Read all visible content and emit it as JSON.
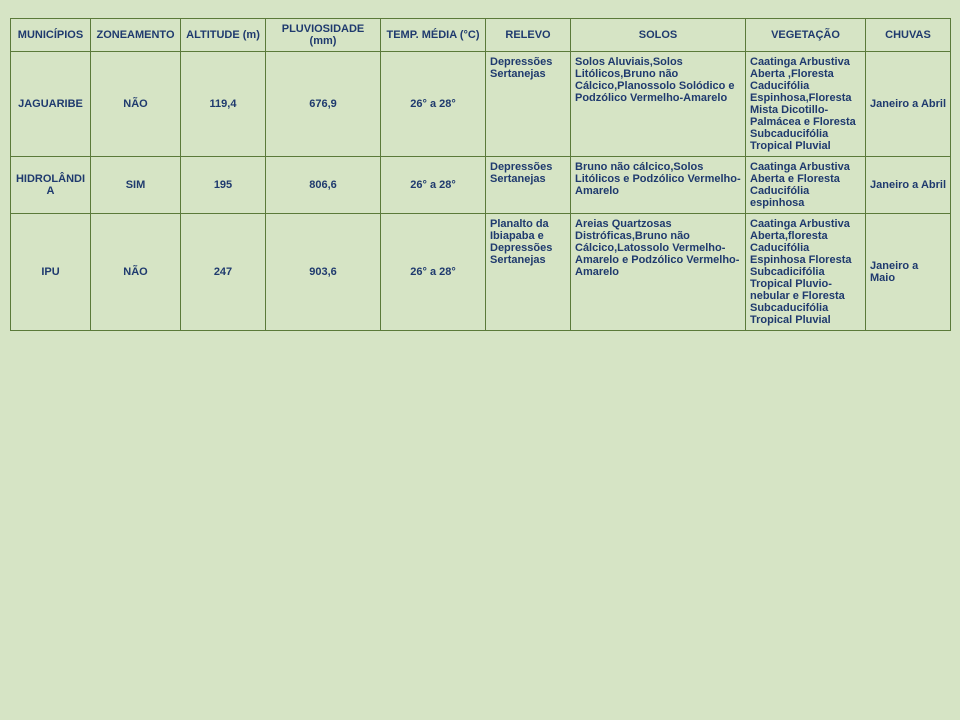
{
  "background_color": "#d6e4c5",
  "text_color": "#1f3a6e",
  "border_color": "#5b7a3a",
  "font_size_pt": 8,
  "headers": {
    "c0": "MUNICÍPIOS",
    "c1": "ZONEAMENTO",
    "c2": "ALTITUDE (m)",
    "c3": "PLUVIOSIDADE (mm)",
    "c4": "TEMP. MÉDIA (°C)",
    "c5": "RELEVO",
    "c6": "SOLOS",
    "c7": "VEGETAÇÃO",
    "c8": "CHUVAS"
  },
  "rows": [
    {
      "municipio": "JAGUARIBE",
      "zoneamento": "NÃO",
      "altitude": "119,4",
      "pluviosidade": "676,9",
      "temp": "26° a 28°",
      "relevo": "Depressões Sertanejas",
      "solos": "Solos Aluviais,Solos Litólicos,Bruno não Cálcico,Planossolo Solódico e Podzólico Vermelho-Amarelo",
      "vegetacao": "Caatinga Arbustiva Aberta ,Floresta Caducifólia Espinhosa,Floresta Mista Dicotillo-Palmácea e Floresta Subcaducifólia Tropical Pluvial",
      "chuvas": "Janeiro a Abril"
    },
    {
      "municipio": "HIDROLÂNDIA",
      "zoneamento": "SIM",
      "altitude": "195",
      "pluviosidade": "806,6",
      "temp": "26° a 28°",
      "relevo": "Depressões Sertanejas",
      "solos": "Bruno não cálcico,Solos Litólicos e Podzólico Vermelho-Amarelo",
      "vegetacao": "Caatinga Arbustiva Aberta e Floresta Caducifólia espinhosa",
      "chuvas": "Janeiro a Abril"
    },
    {
      "municipio": "IPU",
      "zoneamento": "NÃO",
      "altitude": "247",
      "pluviosidade": "903,6",
      "temp": "26° a 28°",
      "relevo": "Planalto da Ibiapaba e Depressões Sertanejas",
      "solos": "Areias Quartzosas Distróficas,Bruno não Cálcico,Latossolo Vermelho-Amarelo e Podzólico Vermelho-Amarelo",
      "vegetacao": "Caatinga Arbustiva Aberta,floresta Caducifólia Espinhosa Floresta Subcadicifólia Tropical Pluvio-nebular e Floresta Subcaducifólia Tropical Pluvial",
      "chuvas": "Janeiro a Maio"
    }
  ]
}
